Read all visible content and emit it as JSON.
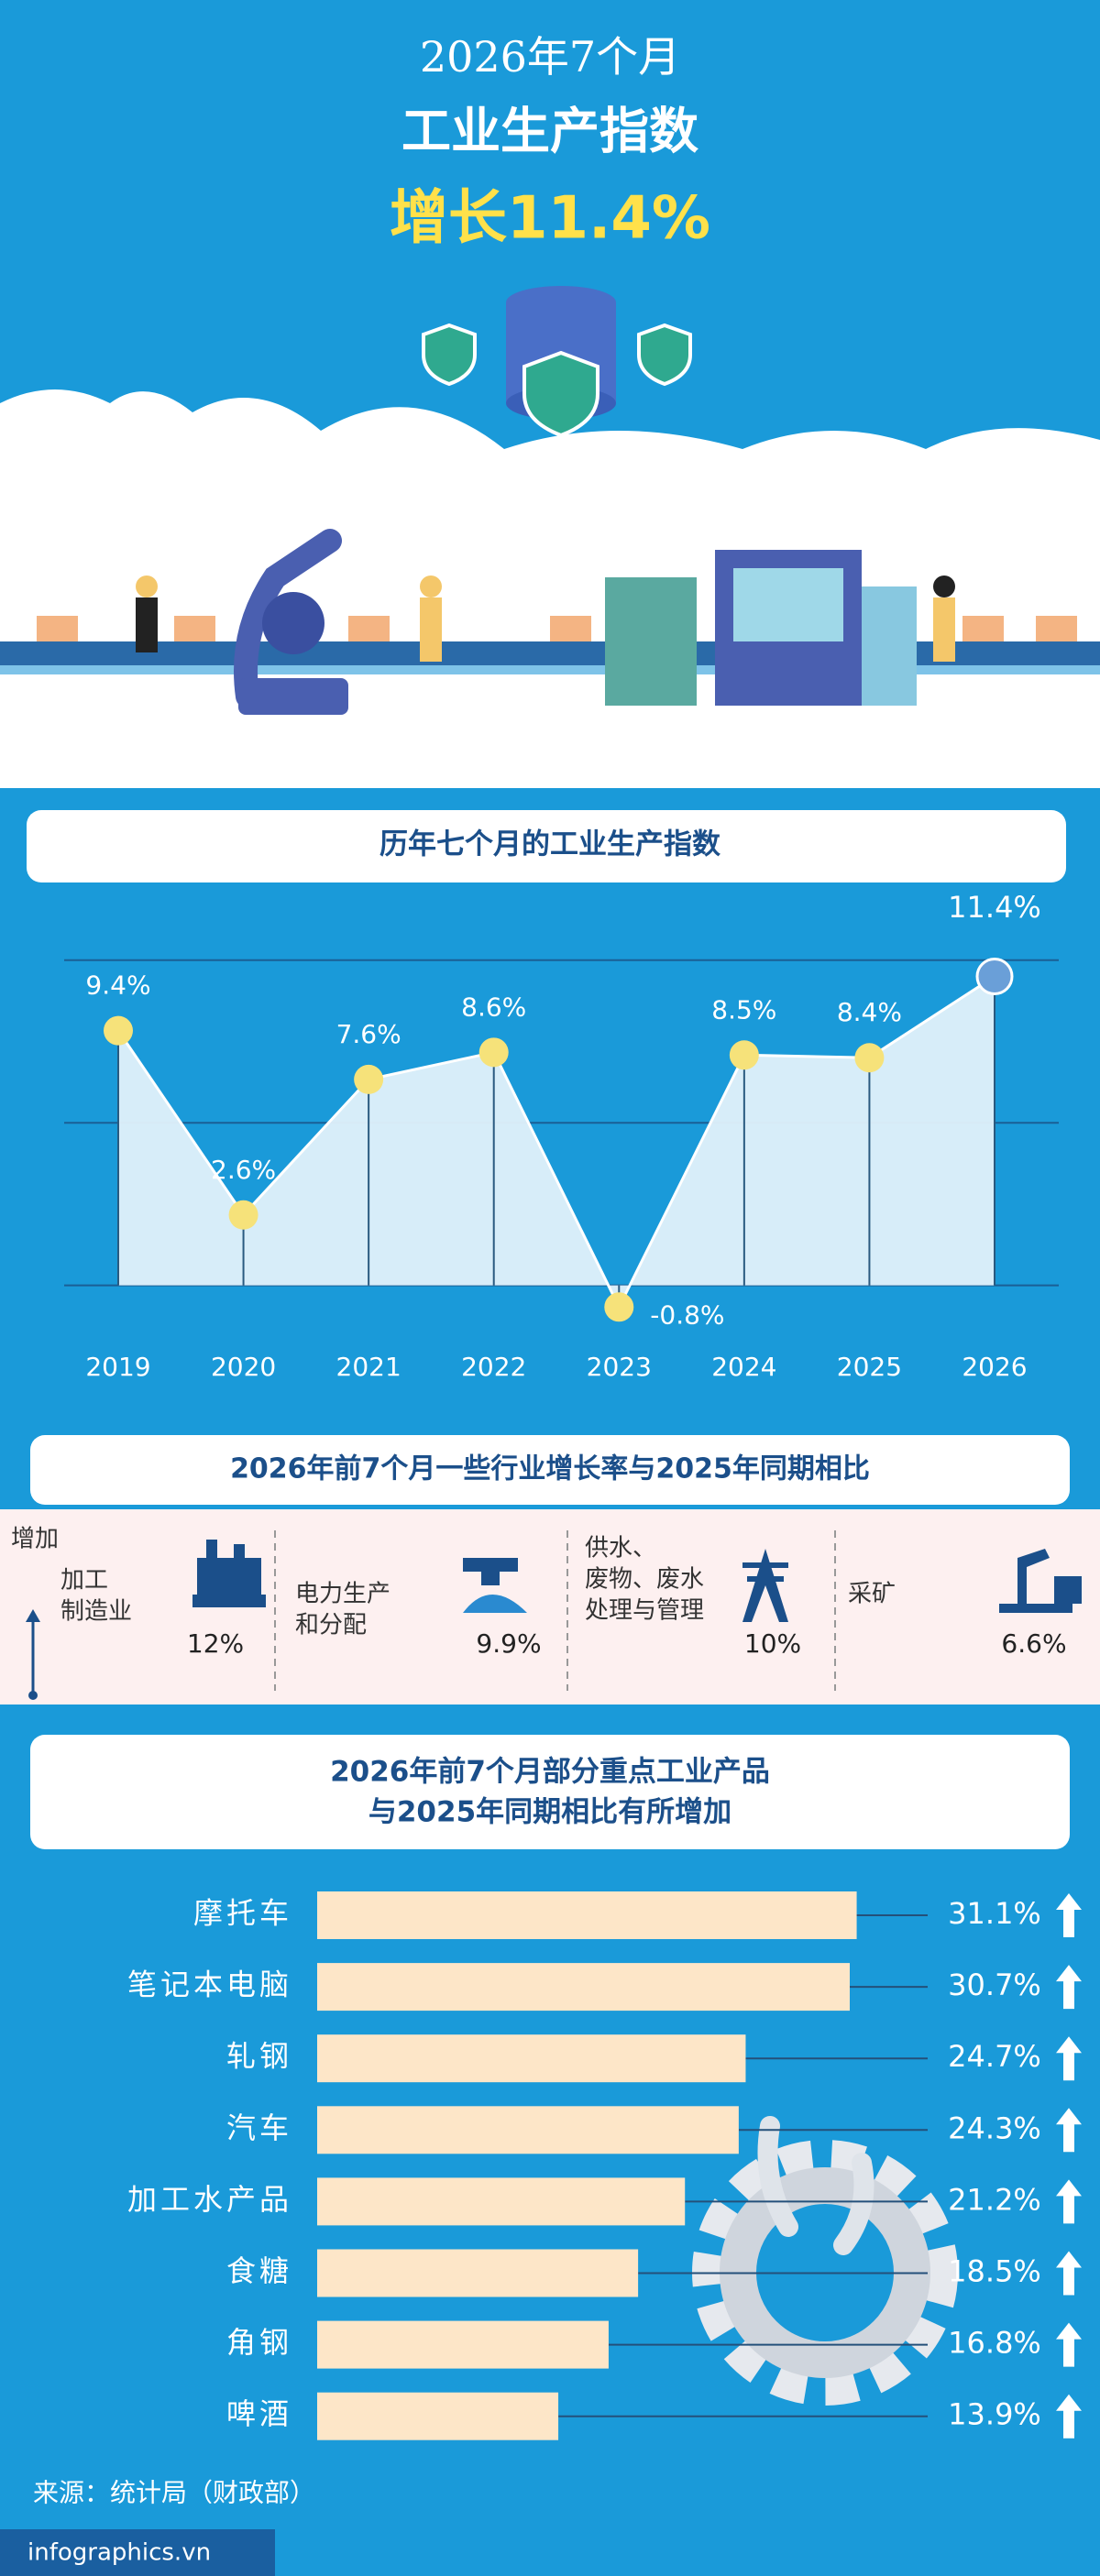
{
  "header": {
    "period": "2026年7个月",
    "title": "工业生产指数",
    "headline": "增长11.4%"
  },
  "chart_data": [
    {
      "type": "line",
      "title": "历年七个月的工业生产指数",
      "categories": [
        "2019",
        "2020",
        "2021",
        "2022",
        "2023",
        "2024",
        "2025",
        "2026"
      ],
      "values": [
        9.4,
        2.6,
        7.6,
        8.6,
        -0.8,
        8.5,
        8.4,
        11.4
      ],
      "value_labels": [
        "9.4%",
        "2.6%",
        "7.6%",
        "8.6%",
        "-0.8%",
        "8.5%",
        "8.4%",
        "11.4%"
      ],
      "ylim": [
        -1.5,
        12.5
      ],
      "yticks": [
        0,
        6,
        12
      ],
      "grid": true,
      "color": "#f6e27a"
    },
    {
      "type": "barh",
      "title": [
        "2026年前7个月部分重点工业产品",
        "与2025年同期相比有所增加"
      ],
      "categories": [
        "摩托车",
        "笔记本电脑",
        "轧钢",
        "汽车",
        "加工水产品",
        "食糖",
        "角钢",
        "啤酒"
      ],
      "values": [
        31.1,
        30.7,
        24.7,
        24.3,
        21.2,
        18.5,
        16.8,
        13.9
      ],
      "value_labels": [
        "31.1%",
        "30.7%",
        "24.7%",
        "24.3%",
        "21.2%",
        "18.5%",
        "16.8%",
        "13.9%"
      ],
      "xlim": [
        0,
        40
      ],
      "color": "#fde6c8"
    }
  ],
  "sectors": {
    "title": "2026年前7个月一些行业增长率与2025年同期相比",
    "label": "增加",
    "items": [
      {
        "name": [
          "加工",
          "制造业"
        ],
        "value": "12%"
      },
      {
        "name": [
          "电力生产",
          "和分配"
        ],
        "value": "9.9%"
      },
      {
        "name": [
          "供水、",
          "废物、废水",
          "处理与管理"
        ],
        "value": "10%"
      },
      {
        "name": [
          "采矿"
        ],
        "value": "6.6%"
      }
    ]
  },
  "source": "来源：统计局（财政部）",
  "footer": "infographics.vn"
}
